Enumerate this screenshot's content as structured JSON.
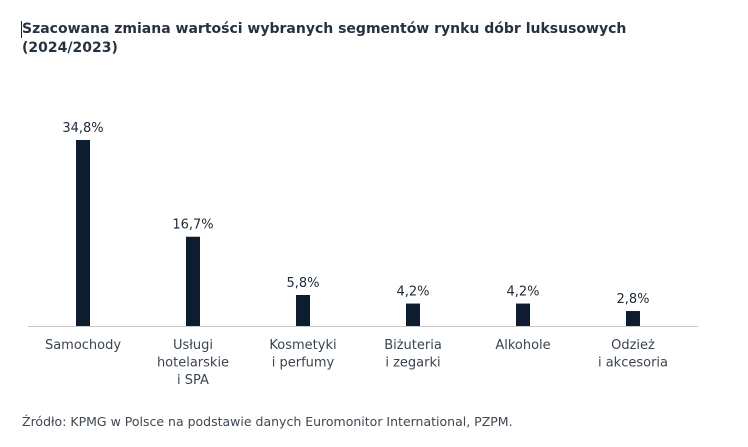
{
  "chart_data": {
    "type": "bar",
    "title_line1": "Szacowana zmiana wartości wybranych segmentów rynku dóbr luksusowych",
    "title_line2": "(2024/2023)",
    "categories": [
      [
        "Samochody"
      ],
      [
        "Usługi",
        "hotelarskie",
        "i SPA"
      ],
      [
        "Kosmetyki",
        "i perfumy"
      ],
      [
        "Biżuteria",
        "i zegarki"
      ],
      [
        "Alkohole"
      ],
      [
        "Odzież",
        "i akcesoria"
      ]
    ],
    "values": [
      34.8,
      16.7,
      5.8,
      4.2,
      4.2,
      2.8
    ],
    "value_labels": [
      "34,8%",
      "16,7%",
      "5,8%",
      "4,2%",
      "4,2%",
      "2,8%"
    ],
    "unit": "%",
    "ylim": [
      0,
      34.8
    ],
    "grid": false,
    "legend": "none",
    "bar_color": "#0d1c2e",
    "axis_color": "#c9c9c9"
  },
  "source": "Źródło: KPMG w Polsce na podstawie danych Euromonitor International, PZPM."
}
